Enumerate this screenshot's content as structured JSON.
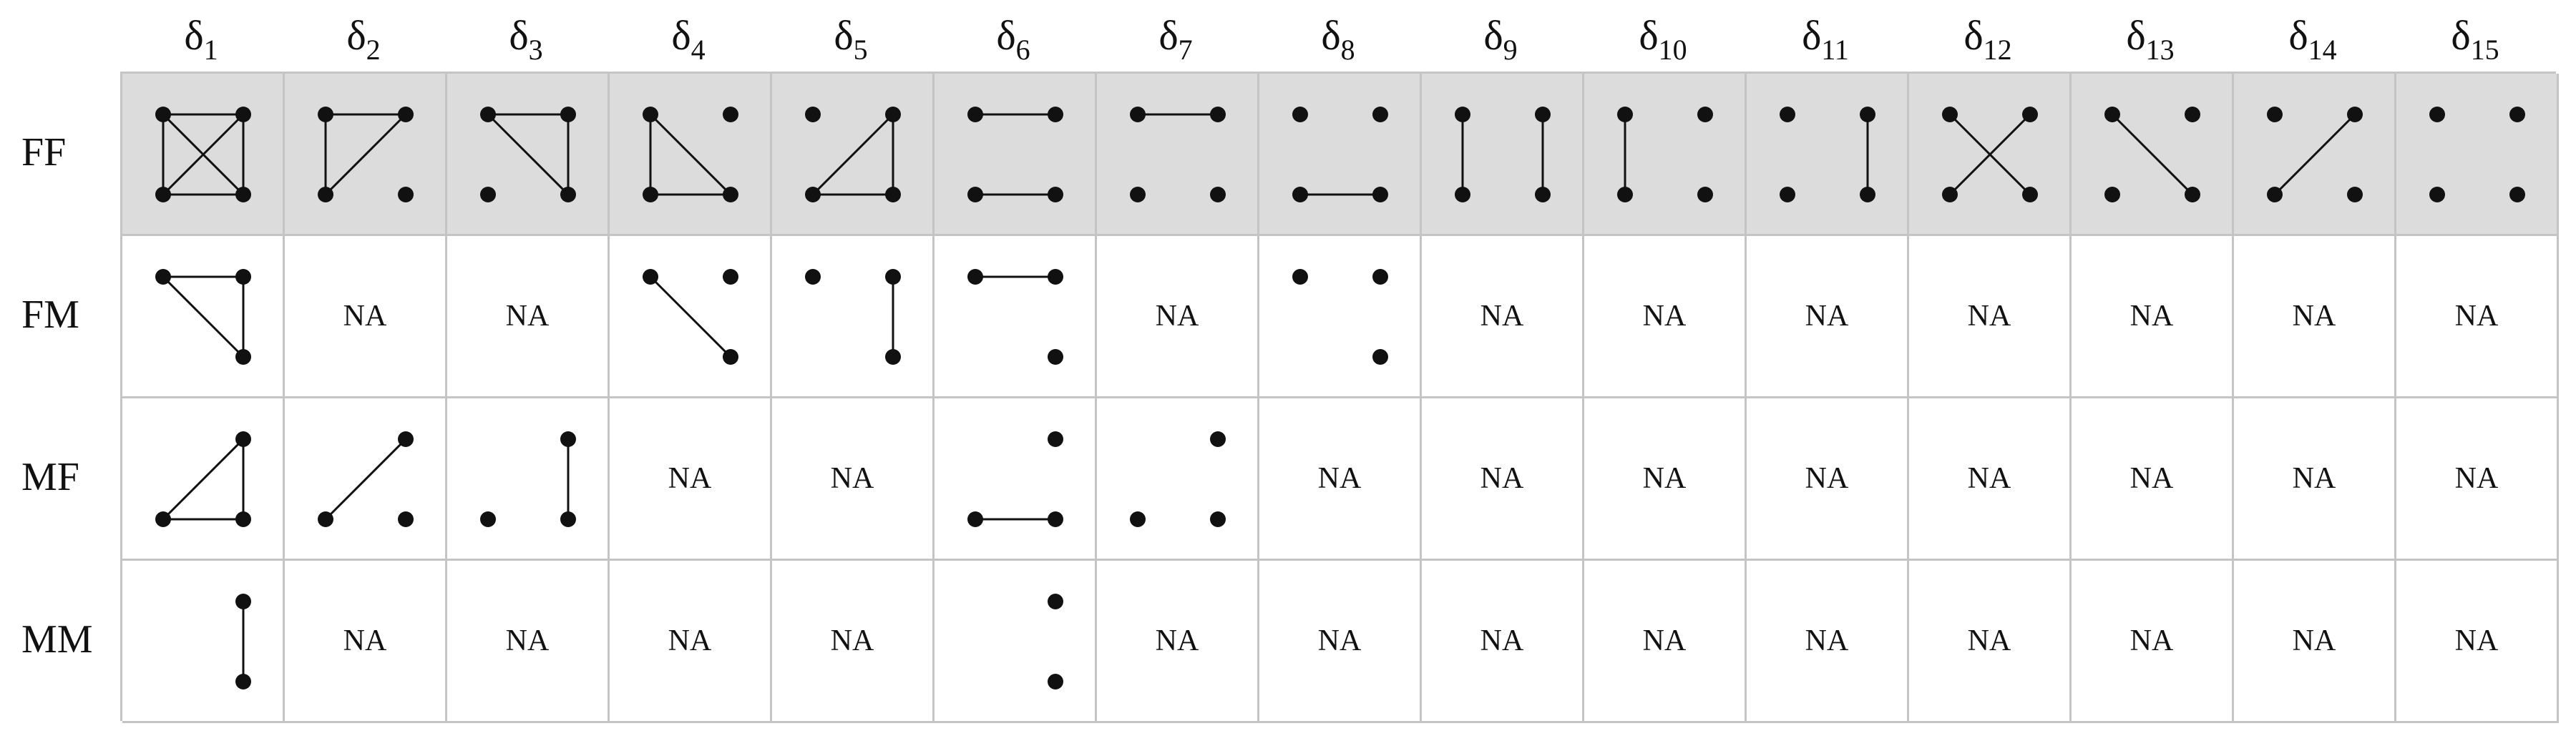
{
  "columns": [
    {
      "label": "δ",
      "sub": "1"
    },
    {
      "label": "δ",
      "sub": "2"
    },
    {
      "label": "δ",
      "sub": "3"
    },
    {
      "label": "δ",
      "sub": "4"
    },
    {
      "label": "δ",
      "sub": "5"
    },
    {
      "label": "δ",
      "sub": "6"
    },
    {
      "label": "δ",
      "sub": "7"
    },
    {
      "label": "δ",
      "sub": "8"
    },
    {
      "label": "δ",
      "sub": "9"
    },
    {
      "label": "δ",
      "sub": "10"
    },
    {
      "label": "δ",
      "sub": "11"
    },
    {
      "label": "δ",
      "sub": "12"
    },
    {
      "label": "δ",
      "sub": "13"
    },
    {
      "label": "δ",
      "sub": "14"
    },
    {
      "label": "δ",
      "sub": "15"
    }
  ],
  "na_text": "NA",
  "rows": [
    {
      "label": "FF",
      "shaded": true,
      "cells": [
        {
          "nodes": [
            "TL",
            "TR",
            "BL",
            "BR"
          ],
          "edges": [
            [
              "TL",
              "TR"
            ],
            [
              "BL",
              "BR"
            ],
            [
              "TL",
              "BL"
            ],
            [
              "TR",
              "BR"
            ],
            [
              "TL",
              "BR"
            ],
            [
              "TR",
              "BL"
            ]
          ]
        },
        {
          "nodes": [
            "TL",
            "TR",
            "BL",
            "BR"
          ],
          "edges": [
            [
              "TL",
              "TR"
            ],
            [
              "TL",
              "BL"
            ],
            [
              "TR",
              "BL"
            ]
          ]
        },
        {
          "nodes": [
            "TL",
            "TR",
            "BL",
            "BR"
          ],
          "edges": [
            [
              "TL",
              "TR"
            ],
            [
              "TR",
              "BR"
            ],
            [
              "TL",
              "BR"
            ]
          ]
        },
        {
          "nodes": [
            "TL",
            "TR",
            "BL",
            "BR"
          ],
          "edges": [
            [
              "TL",
              "BL"
            ],
            [
              "BL",
              "BR"
            ],
            [
              "TL",
              "BR"
            ]
          ]
        },
        {
          "nodes": [
            "TL",
            "TR",
            "BL",
            "BR"
          ],
          "edges": [
            [
              "TR",
              "BR"
            ],
            [
              "BL",
              "BR"
            ],
            [
              "TR",
              "BL"
            ]
          ]
        },
        {
          "nodes": [
            "TL",
            "TR",
            "BL",
            "BR"
          ],
          "edges": [
            [
              "TL",
              "TR"
            ],
            [
              "BL",
              "BR"
            ]
          ]
        },
        {
          "nodes": [
            "TL",
            "TR",
            "BL",
            "BR"
          ],
          "edges": [
            [
              "TL",
              "TR"
            ]
          ]
        },
        {
          "nodes": [
            "TL",
            "TR",
            "BL",
            "BR"
          ],
          "edges": [
            [
              "BL",
              "BR"
            ]
          ]
        },
        {
          "nodes": [
            "TL",
            "TR",
            "BL",
            "BR"
          ],
          "edges": [
            [
              "TL",
              "BL"
            ],
            [
              "TR",
              "BR"
            ]
          ]
        },
        {
          "nodes": [
            "TL",
            "TR",
            "BL",
            "BR"
          ],
          "edges": [
            [
              "TL",
              "BL"
            ]
          ]
        },
        {
          "nodes": [
            "TL",
            "TR",
            "BL",
            "BR"
          ],
          "edges": [
            [
              "TR",
              "BR"
            ]
          ]
        },
        {
          "nodes": [
            "TL",
            "TR",
            "BL",
            "BR"
          ],
          "edges": [
            [
              "TL",
              "BR"
            ],
            [
              "TR",
              "BL"
            ]
          ]
        },
        {
          "nodes": [
            "TL",
            "TR",
            "BL",
            "BR"
          ],
          "edges": [
            [
              "TL",
              "BR"
            ]
          ]
        },
        {
          "nodes": [
            "TL",
            "TR",
            "BL",
            "BR"
          ],
          "edges": [
            [
              "TR",
              "BL"
            ]
          ]
        },
        {
          "nodes": [
            "TL",
            "TR",
            "BL",
            "BR"
          ],
          "edges": []
        }
      ]
    },
    {
      "label": "FM",
      "shaded": false,
      "cells": [
        {
          "nodes": [
            "TL",
            "TR",
            "BR"
          ],
          "edges": [
            [
              "TL",
              "TR"
            ],
            [
              "TR",
              "BR"
            ],
            [
              "TL",
              "BR"
            ]
          ]
        },
        null,
        null,
        {
          "nodes": [
            "TL",
            "TR",
            "BR"
          ],
          "edges": [
            [
              "TL",
              "BR"
            ]
          ]
        },
        {
          "nodes": [
            "TL",
            "TR",
            "BR"
          ],
          "edges": [
            [
              "TR",
              "BR"
            ]
          ]
        },
        {
          "nodes": [
            "TL",
            "TR",
            "BR"
          ],
          "edges": [
            [
              "TL",
              "TR"
            ]
          ]
        },
        null,
        {
          "nodes": [
            "TL",
            "TR",
            "BR"
          ],
          "edges": []
        },
        null,
        null,
        null,
        null,
        null,
        null,
        null
      ]
    },
    {
      "label": "MF",
      "shaded": false,
      "cells": [
        {
          "nodes": [
            "TR",
            "BL",
            "BR"
          ],
          "edges": [
            [
              "TR",
              "BR"
            ],
            [
              "BL",
              "BR"
            ],
            [
              "TR",
              "BL"
            ]
          ]
        },
        {
          "nodes": [
            "TR",
            "BL",
            "BR"
          ],
          "edges": [
            [
              "TR",
              "BL"
            ]
          ]
        },
        {
          "nodes": [
            "TR",
            "BL",
            "BR"
          ],
          "edges": [
            [
              "TR",
              "BR"
            ]
          ]
        },
        null,
        null,
        {
          "nodes": [
            "TR",
            "BL",
            "BR"
          ],
          "edges": [
            [
              "BL",
              "BR"
            ]
          ]
        },
        {
          "nodes": [
            "TR",
            "BL",
            "BR"
          ],
          "edges": []
        },
        null,
        null,
        null,
        null,
        null,
        null,
        null,
        null
      ]
    },
    {
      "label": "MM",
      "shaded": false,
      "cells": [
        {
          "nodes": [
            "TR",
            "BR"
          ],
          "edges": [
            [
              "TR",
              "BR"
            ]
          ]
        },
        null,
        null,
        null,
        null,
        {
          "nodes": [
            "TR",
            "BR"
          ],
          "edges": []
        },
        null,
        null,
        null,
        null,
        null,
        null,
        null,
        null,
        null
      ]
    }
  ]
}
